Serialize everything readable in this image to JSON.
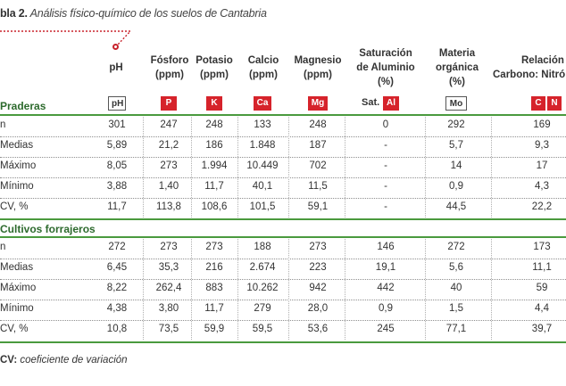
{
  "caption": {
    "label": "bla 2.",
    "title": " Análisis físico-químico de los suelos de Cantabria"
  },
  "headers": {
    "ph": [
      "pH"
    ],
    "fosforo": [
      "Fósforo",
      "(ppm)"
    ],
    "potasio": [
      "Potasio",
      "(ppm)"
    ],
    "calcio": [
      "Calcio",
      "(ppm)"
    ],
    "magnesio": [
      "Magnesio",
      "(ppm)"
    ],
    "saturacion": [
      "Saturación",
      "de Aluminio",
      "(%)"
    ],
    "materia": [
      "Materia",
      "orgánica",
      "(%)"
    ],
    "relacion": [
      "Relación",
      "Carbono: Nitró"
    ]
  },
  "symbols": {
    "ph": "pH",
    "fosforo": "P",
    "potasio": "K",
    "calcio": "Ca",
    "magnesio": "Mg",
    "sat_label": "Sat.",
    "aluminio": "Al",
    "materia": "Mo",
    "carbono": "C",
    "nitrogeno": "N"
  },
  "sections": [
    {
      "label": "Praderas",
      "rows": [
        {
          "stat": "n",
          "values": [
            "301",
            "247",
            "248",
            "133",
            "248",
            "0",
            "292",
            "169"
          ]
        },
        {
          "stat": "Medias",
          "values": [
            "5,89",
            "21,2",
            "186",
            "1.848",
            "187",
            "-",
            "5,7",
            "9,3"
          ]
        },
        {
          "stat": "Máximo",
          "values": [
            "8,05",
            "273",
            "1.994",
            "10.449",
            "702",
            "-",
            "14",
            "17"
          ]
        },
        {
          "stat": "Mínimo",
          "values": [
            "3,88",
            "1,40",
            "11,7",
            "40,1",
            "11,5",
            "-",
            "0,9",
            "4,3"
          ]
        },
        {
          "stat": "CV, %",
          "values": [
            "11,7",
            "113,8",
            "108,6",
            "101,5",
            "59,1",
            "-",
            "44,5",
            "22,2"
          ]
        }
      ]
    },
    {
      "label": "Cultivos forrajeros",
      "rows": [
        {
          "stat": "n",
          "values": [
            "272",
            "273",
            "273",
            "188",
            "273",
            "146",
            "272",
            "173"
          ]
        },
        {
          "stat": "Medias",
          "values": [
            "6,45",
            "35,3",
            "216",
            "2.674",
            "223",
            "19,1",
            "5,6",
            "11,1"
          ]
        },
        {
          "stat": "Máximo",
          "values": [
            "8,22",
            "262,4",
            "883",
            "10.262",
            "942",
            "442",
            "40",
            "59"
          ]
        },
        {
          "stat": "Mínimo",
          "values": [
            "4,38",
            "3,80",
            "11,7",
            "279",
            "28,0",
            "0,9",
            "1,5",
            "4,4"
          ]
        },
        {
          "stat": "CV, %",
          "values": [
            "10,8",
            "73,5",
            "59,9",
            "59,5",
            "53,6",
            "245",
            "77,1",
            "39,7"
          ]
        }
      ]
    }
  ],
  "footnote": {
    "abbr": "CV:",
    "text": " coeficiente de variación"
  },
  "colors": {
    "accent_red": "#d6232b",
    "green": "#4a9a3e",
    "section_text": "#2d6a2d"
  }
}
